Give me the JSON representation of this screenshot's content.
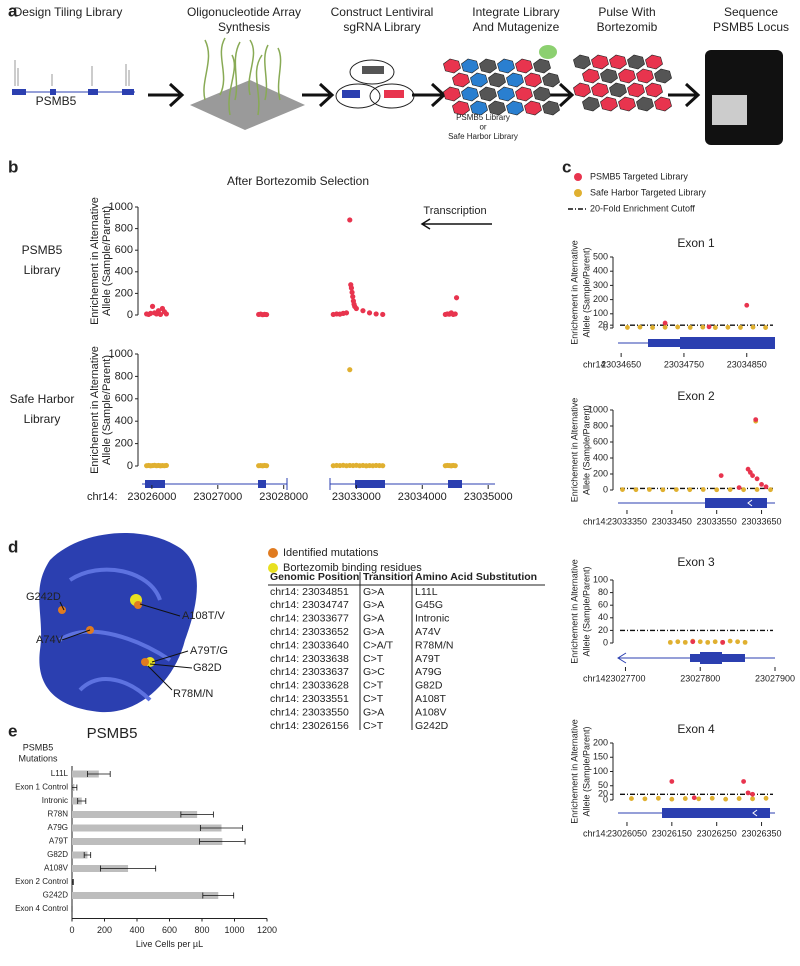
{
  "panel_letters": [
    "a",
    "b",
    "c",
    "d",
    "e"
  ],
  "workflow": {
    "steps": [
      [
        "Design Tiling Library"
      ],
      [
        "Oligonucleotide Array",
        "Synthesis"
      ],
      [
        "Construct Lentiviral",
        "sgRNA Library"
      ],
      [
        "Integrate Library",
        "And Mutagenize"
      ],
      [
        "Pulse With",
        "Bortezomib"
      ],
      [
        "Sequence",
        "PSMB5 Locus"
      ]
    ],
    "gene_label": "PSMB5",
    "library_note": [
      "PSMB5 Library",
      "or",
      "Safe Harbor Library"
    ]
  },
  "chart_data": [
    {
      "type": "scatter",
      "title": "After Bortezomib Selection",
      "label": [
        "PSMB5",
        "Library"
      ],
      "ylabel": [
        "Enrichement in Alternative",
        "Allele (Sample/Parent)"
      ],
      "annotation": "Transcription",
      "xlim": [
        23025850,
        23035100
      ],
      "axis_break": [
        23028050,
        23032600
      ],
      "ylim": [
        0,
        1000
      ],
      "yticks": [
        0,
        200,
        400,
        600,
        800,
        1000
      ],
      "series": [
        {
          "color": "#e8344e",
          "x": [
            23025920,
            23025950,
            23025980,
            23026010,
            23026040,
            23026070,
            23026100,
            23026130,
            23026160,
            23026190,
            23026220,
            23027620,
            23027650,
            23027680,
            23027710,
            23027740,
            23032650,
            23032700,
            23032750,
            23032800,
            23032850,
            23032900,
            23032915,
            23032925,
            23032935,
            23032945,
            23032955,
            23032965,
            23032975,
            23033000,
            23033100,
            23033200,
            23033300,
            23033400,
            23034350,
            23034380,
            23034410,
            23034440,
            23034470,
            23034500,
            23034520
          ],
          "values": [
            10,
            5,
            15,
            80,
            20,
            10,
            40,
            5,
            60,
            30,
            10,
            5,
            8,
            3,
            6,
            4,
            5,
            10,
            8,
            15,
            20,
            880,
            280,
            250,
            210,
            170,
            130,
            100,
            80,
            60,
            40,
            20,
            10,
            5,
            5,
            10,
            8,
            20,
            5,
            10,
            160
          ]
        }
      ]
    },
    {
      "type": "scatter",
      "label": [
        "Safe Harbor",
        "Library"
      ],
      "ylabel": [
        "Enrichement in Alternative",
        "Allele (Sample/Parent)"
      ],
      "xlim": [
        23025850,
        23035100
      ],
      "axis_break": [
        23028050,
        23032600
      ],
      "ylim": [
        0,
        1000
      ],
      "yticks": [
        0,
        200,
        400,
        600,
        800,
        1000
      ],
      "xticks": [
        23026000,
        23027000,
        23028000,
        23033000,
        23034000,
        23035000
      ],
      "xtick_prefix": "chr14:",
      "series": [
        {
          "color": "#e0b030",
          "x": [
            23025920,
            23025950,
            23025980,
            23026010,
            23026040,
            23026070,
            23026100,
            23026130,
            23026160,
            23026190,
            23026220,
            23027620,
            23027650,
            23027680,
            23027710,
            23027740,
            23032650,
            23032700,
            23032750,
            23032800,
            23032850,
            23032900,
            23032900,
            23032950,
            23033000,
            23033050,
            23033100,
            23033150,
            23033200,
            23033250,
            23033300,
            23033350,
            23033400,
            23034350,
            23034380,
            23034410,
            23034440,
            23034470,
            23034500
          ],
          "values": [
            3,
            5,
            2,
            4,
            6,
            3,
            5,
            2,
            4,
            3,
            5,
            3,
            4,
            2,
            5,
            3,
            3,
            5,
            4,
            6,
            3,
            860,
            5,
            4,
            6,
            3,
            5,
            2,
            4,
            3,
            5,
            4,
            3,
            3,
            5,
            4,
            2,
            5,
            3
          ]
        }
      ]
    },
    {
      "type": "scatter",
      "title": "Exon 1",
      "ylabel": [
        "Enrichement in Alternative",
        "Allele (Sample/Parent)"
      ],
      "xlim": [
        23034645,
        23034895
      ],
      "ylim": [
        0,
        500
      ],
      "yticks": [
        0,
        20,
        100,
        200,
        300,
        400,
        500
      ],
      "xticks": [
        23034650,
        23034750,
        23034850
      ],
      "xtick_prefix": "chr14",
      "cutoff": 20,
      "cutoff_label": "20-Fold Enrichment Cutoff",
      "series": [
        {
          "name": "PSMB5 Targeted Library",
          "color": "#e8344e",
          "x": [
            23034720,
            23034790,
            23034850
          ],
          "values": [
            35,
            8,
            160
          ]
        },
        {
          "name": "Safe Harbor Targeted Library",
          "color": "#e0b030",
          "x": [
            23034660,
            23034680,
            23034700,
            23034720,
            23034740,
            23034760,
            23034780,
            23034800,
            23034820,
            23034840,
            23034860,
            23034880
          ],
          "values": [
            4,
            6,
            3,
            5,
            7,
            4,
            6,
            3,
            5,
            4,
            6,
            3
          ]
        }
      ]
    },
    {
      "type": "scatter",
      "title": "Exon 2",
      "ylabel": [
        "Enrichement in Alternative",
        "Allele (Sample/Parent)"
      ],
      "xlim": [
        23033330,
        23033680
      ],
      "ylim": [
        0,
        1000
      ],
      "yticks": [
        0,
        200,
        400,
        600,
        800,
        1000
      ],
      "xticks": [
        23033350,
        23033450,
        23033550,
        23033650
      ],
      "xtick_prefix": "chr14:",
      "cutoff": 20,
      "series": [
        {
          "color": "#e8344e",
          "x": [
            23033560,
            23033600,
            23033620,
            23033625,
            23033630,
            23033637,
            23033640,
            23033650,
            23033660
          ],
          "values": [
            180,
            30,
            260,
            220,
            180,
            880,
            140,
            70,
            40
          ]
        },
        {
          "color": "#e0b030",
          "x": [
            23033340,
            23033370,
            23033400,
            23033430,
            23033460,
            23033490,
            23033520,
            23033550,
            23033580,
            23033610,
            23033637,
            23033640,
            23033670
          ],
          "values": [
            5,
            4,
            6,
            3,
            5,
            4,
            6,
            3,
            5,
            4,
            860,
            6,
            4
          ]
        }
      ]
    },
    {
      "type": "scatter",
      "title": "Exon 3",
      "ylabel": [
        "Enrichement in Alternative",
        "Allele (Sample/Parent)"
      ],
      "xlim": [
        23027690,
        23027900
      ],
      "ylim": [
        0,
        100
      ],
      "yticks": [
        0,
        20,
        40,
        60,
        80,
        100
      ],
      "xticks": [
        23027700,
        23027800,
        23027900
      ],
      "xtick_prefix": "chr14:",
      "cutoff": 20,
      "series": [
        {
          "color": "#e8344e",
          "x": [
            23027790,
            23027830
          ],
          "values": [
            2,
            1
          ]
        },
        {
          "color": "#e0b030",
          "x": [
            23027760,
            23027770,
            23027780,
            23027790,
            23027800,
            23027810,
            23027820,
            23027830,
            23027840,
            23027850,
            23027860
          ],
          "values": [
            1,
            2,
            1,
            3,
            2,
            1,
            2,
            1,
            3,
            2,
            1
          ]
        }
      ]
    },
    {
      "type": "scatter",
      "title": "Exon 4",
      "ylabel": [
        "Enrichement in Alternative",
        "Allele (Sample/Parent)"
      ],
      "xlim": [
        23026030,
        23026380
      ],
      "ylim": [
        0,
        200
      ],
      "yticks": [
        0,
        20,
        50,
        100,
        150,
        200
      ],
      "xticks": [
        23026050,
        23026150,
        23026250,
        23026350
      ],
      "xtick_prefix": "chr14:",
      "cutoff": 20,
      "series": [
        {
          "color": "#e8344e",
          "x": [
            23026150,
            23026200,
            23026310,
            23026320,
            23026330
          ],
          "values": [
            65,
            8,
            65,
            25,
            20
          ]
        },
        {
          "color": "#e0b030",
          "x": [
            23026060,
            23026090,
            23026120,
            23026150,
            23026180,
            23026210,
            23026240,
            23026270,
            23026300,
            23026330,
            23026360
          ],
          "values": [
            5,
            4,
            6,
            3,
            5,
            4,
            6,
            3,
            5,
            4,
            6
          ]
        }
      ]
    },
    {
      "type": "bar",
      "orientation": "horizontal",
      "ylabel": [
        "PSMB5",
        "Mutations"
      ],
      "xlabel": "Live Cells per µL",
      "categories": [
        "L11L",
        "Exon 1 Control",
        "Intronic",
        "R78N",
        "A79G",
        "A79T",
        "G82D",
        "A108V",
        "Exon 2 Control",
        "G242D",
        "Exon 4 Control"
      ],
      "values": [
        165,
        15,
        60,
        770,
        920,
        925,
        95,
        345,
        5,
        900,
        0
      ],
      "errors": [
        70,
        15,
        25,
        100,
        130,
        140,
        20,
        170,
        3,
        95,
        0
      ],
      "color": "#bdbdbd",
      "xlim": [
        0,
        1200
      ],
      "xticks": [
        0,
        200,
        400,
        600,
        800,
        1000,
        1200
      ]
    }
  ],
  "structure": {
    "legend": [
      {
        "label": "Identified mutations",
        "color": "#e07b20"
      },
      {
        "label": "Bortezomib binding residues",
        "color": "#e8e020"
      }
    ],
    "labels": [
      "G242D",
      "A108T/V",
      "A74V",
      "A79T/G",
      "G82D",
      "R78M/N"
    ],
    "title": "PSMB5"
  },
  "table": {
    "header": [
      "Genomic Position",
      "Transition",
      "Amino Acid Substitution"
    ],
    "rows": [
      [
        "chr14: 23034851",
        "G>A",
        "L11L"
      ],
      [
        "chr14: 23034747",
        "G>A",
        "G45G"
      ],
      [
        "chr14: 23033677",
        "G>A",
        "Intronic"
      ],
      [
        "chr14: 23033652",
        "G>A",
        "A74V"
      ],
      [
        "chr14: 23033640",
        "C>A/T",
        "R78M/N"
      ],
      [
        "chr14: 23033638",
        "C>T",
        "A79T"
      ],
      [
        "chr14: 23033637",
        "G>C",
        "A79G"
      ],
      [
        "chr14: 23033628",
        "C>T",
        "G82D"
      ],
      [
        "chr14: 23033551",
        "C>T",
        "A108T"
      ],
      [
        "chr14: 23033550",
        "G>A",
        "A108V"
      ],
      [
        "chr14: 23026156",
        "C>T",
        "G242D"
      ]
    ]
  }
}
